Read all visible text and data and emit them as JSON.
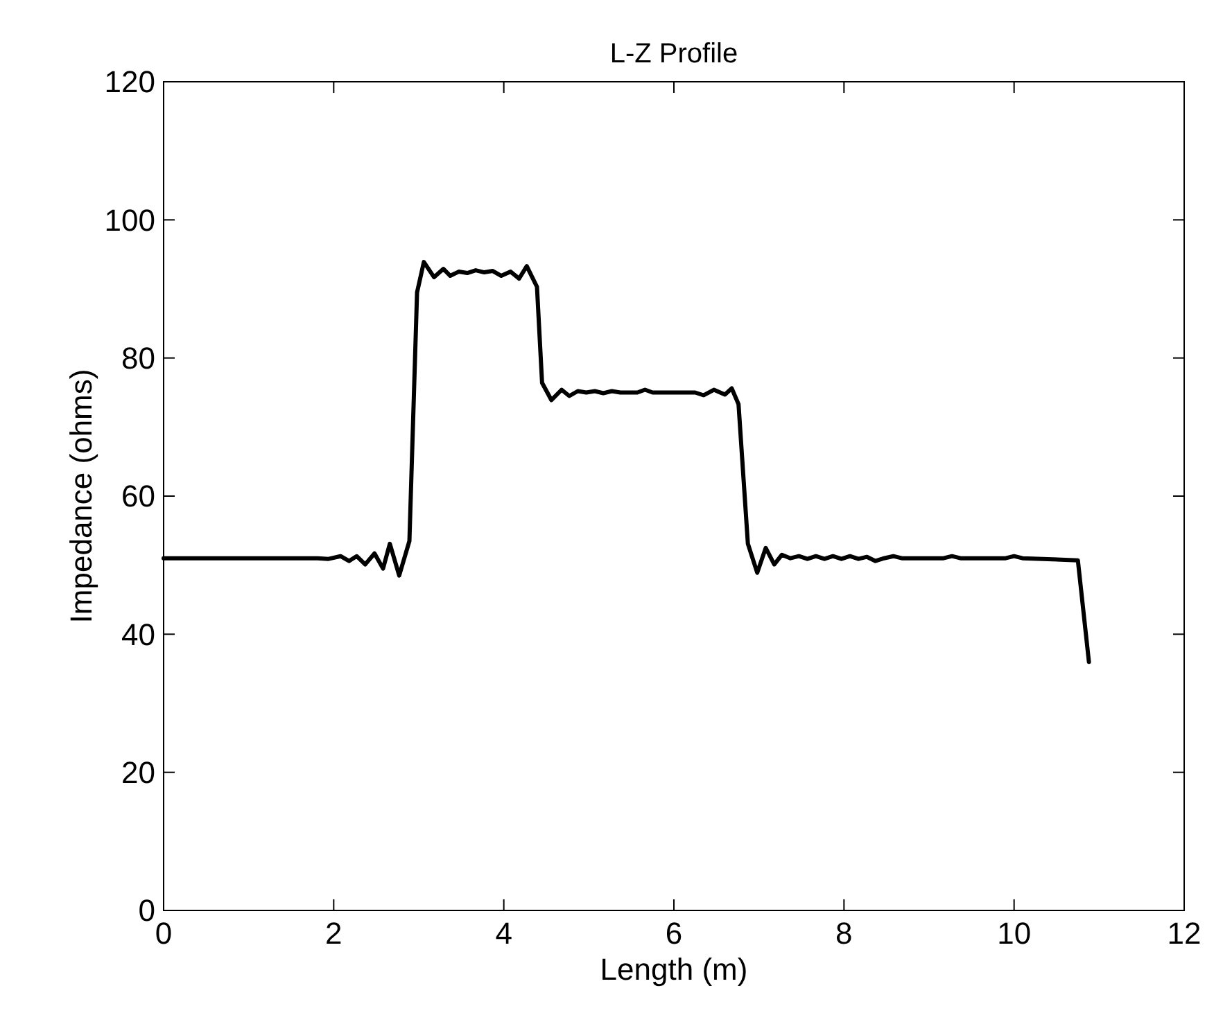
{
  "chart_data": {
    "type": "line",
    "title": "L-Z Profile",
    "xlabel": "Length (m)",
    "ylabel": "Impedance (ohms)",
    "xlim": [
      0,
      12
    ],
    "ylim": [
      0,
      120
    ],
    "xticks": [
      0,
      2,
      4,
      6,
      8,
      10,
      12
    ],
    "yticks": [
      0,
      20,
      40,
      60,
      80,
      100,
      120
    ],
    "grid": false,
    "marker": "none",
    "line_style": "solid",
    "series": [
      {
        "color": "#000000",
        "x": [
          0,
          1.81,
          1.94,
          2.08,
          2.18,
          2.27,
          2.37,
          2.48,
          2.58,
          2.66,
          2.77,
          2.89,
          2.98,
          3.06,
          3.18,
          3.29,
          3.37,
          3.47,
          3.57,
          3.67,
          3.77,
          3.87,
          3.97,
          4.08,
          4.18,
          4.27,
          4.39,
          4.45,
          4.56,
          4.68,
          4.77,
          4.87,
          4.97,
          5.07,
          5.17,
          5.27,
          5.37,
          5.57,
          5.66,
          5.75,
          6.25,
          6.35,
          6.47,
          6.6,
          6.68,
          6.76,
          6.87,
          6.98,
          7.08,
          7.18,
          7.27,
          7.37,
          7.47,
          7.57,
          7.67,
          7.77,
          7.87,
          7.97,
          8.07,
          8.17,
          8.27,
          8.37,
          8.47,
          8.58,
          8.68,
          9.17,
          9.27,
          9.37,
          9.9,
          10.0,
          10.1,
          10.75,
          10.88
        ],
        "values": [
          51,
          51,
          50.9,
          51.3,
          50.6,
          51.3,
          50.1,
          51.7,
          49.5,
          53.1,
          48.5,
          53.5,
          89.5,
          93.9,
          91.7,
          92.9,
          91.9,
          92.5,
          92.3,
          92.7,
          92.4,
          92.6,
          91.9,
          92.5,
          91.5,
          93.3,
          90.3,
          76.4,
          73.9,
          75.4,
          74.5,
          75.2,
          75,
          75.2,
          74.9,
          75.2,
          75,
          75,
          75.4,
          75,
          75,
          74.6,
          75.4,
          74.7,
          75.6,
          73.3,
          53.1,
          48.9,
          52.5,
          50.1,
          51.5,
          51,
          51.3,
          50.9,
          51.3,
          50.9,
          51.3,
          50.9,
          51.3,
          50.9,
          51.2,
          50.6,
          51,
          51.3,
          51,
          51,
          51.3,
          51,
          51,
          51.3,
          51,
          50.7,
          36
        ]
      }
    ]
  }
}
